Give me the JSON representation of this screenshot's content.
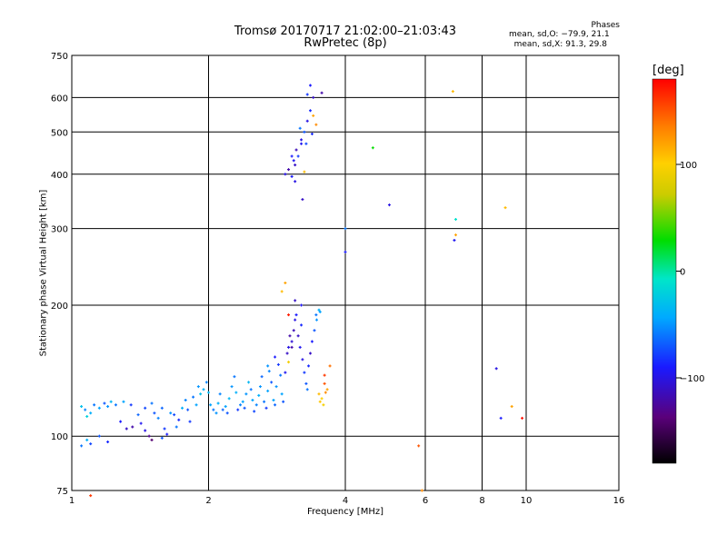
{
  "title_line1": "Tromsø 20170717 21:02:00–21:03:43",
  "title_line2": "RwPretec (8p)",
  "phase_box": {
    "title": "Phases",
    "line_o": "mean, sd,O: −79.9, 21.1",
    "line_x": "mean, sd,X:  91.3, 29.8"
  },
  "colorbar": {
    "unit": "[deg]",
    "range": [
      -180,
      180
    ],
    "ticks": [
      {
        "value": 100,
        "label": "100"
      },
      {
        "value": 0,
        "label": "0"
      },
      {
        "value": -100,
        "label": "−100"
      }
    ]
  },
  "chart_data": {
    "type": "scatter",
    "xlabel": "Frequency [MHz]",
    "ylabel": "Stationary phase Virtual Height [km]",
    "x_scale": "log",
    "y_scale": "log",
    "xlim": [
      1,
      16
    ],
    "ylim": [
      75,
      750
    ],
    "x_ticks": [
      {
        "value": 1,
        "label": "1"
      },
      {
        "value": 2,
        "label": "2"
      },
      {
        "value": 4,
        "label": "4"
      },
      {
        "value": 6,
        "label": "6"
      },
      {
        "value": 8,
        "label": "8"
      },
      {
        "value": 10,
        "label": "10"
      },
      {
        "value": 16,
        "label": "16"
      }
    ],
    "y_ticks": [
      {
        "value": 75,
        "label": "75"
      },
      {
        "value": 100,
        "label": "100"
      },
      {
        "value": 200,
        "label": "200"
      },
      {
        "value": 300,
        "label": "300"
      },
      {
        "value": 400,
        "label": "400"
      },
      {
        "value": 500,
        "label": "500"
      },
      {
        "value": 600,
        "label": "600"
      },
      {
        "value": 750,
        "label": "750"
      }
    ],
    "x_grid": [
      1,
      2,
      4,
      6,
      8,
      10,
      16
    ],
    "y_grid": [
      75,
      100,
      200,
      300,
      400,
      500,
      600,
      750
    ],
    "color_by": "phase [deg]",
    "points": [
      [
        1.05,
        95,
        -60
      ],
      [
        1.1,
        96,
        -75
      ],
      [
        1.08,
        98,
        -40
      ],
      [
        1.15,
        100,
        -70
      ],
      [
        1.2,
        97,
        -85
      ],
      [
        1.05,
        117,
        -30
      ],
      [
        1.07,
        115,
        -55
      ],
      [
        1.1,
        113,
        -40
      ],
      [
        1.12,
        118,
        -60
      ],
      [
        1.15,
        116,
        -45
      ],
      [
        1.18,
        119,
        -70
      ],
      [
        1.2,
        117,
        -50
      ],
      [
        1.22,
        120,
        -35
      ],
      [
        1.25,
        118,
        -60
      ],
      [
        1.08,
        111,
        -20
      ],
      [
        1.3,
        120,
        -45
      ],
      [
        1.35,
        118,
        -80
      ],
      [
        1.28,
        108,
        -90
      ],
      [
        1.32,
        104,
        -110
      ],
      [
        1.36,
        105,
        -120
      ],
      [
        1.4,
        112,
        -65
      ],
      [
        1.42,
        107,
        -95
      ],
      [
        1.45,
        116,
        -75
      ],
      [
        1.48,
        100,
        -130
      ],
      [
        1.5,
        98,
        -140
      ],
      [
        1.45,
        103,
        -100
      ],
      [
        1.5,
        119,
        -60
      ],
      [
        1.52,
        113,
        -70
      ],
      [
        1.55,
        110,
        -55
      ],
      [
        1.58,
        116,
        -65
      ],
      [
        1.6,
        104,
        -80
      ],
      [
        1.62,
        101,
        -90
      ],
      [
        1.58,
        99,
        -70
      ],
      [
        1.65,
        113,
        -50
      ],
      [
        1.68,
        112,
        -75
      ],
      [
        1.7,
        105,
        -60
      ],
      [
        1.72,
        109,
        -85
      ],
      [
        1.75,
        116,
        -40
      ],
      [
        1.78,
        121,
        -55
      ],
      [
        1.8,
        115,
        -70
      ],
      [
        1.82,
        108,
        -80
      ],
      [
        1.85,
        123,
        -60
      ],
      [
        1.88,
        118,
        -45
      ],
      [
        1.9,
        130,
        -50
      ],
      [
        1.92,
        125,
        -30
      ],
      [
        1.95,
        128,
        -40
      ],
      [
        1.98,
        133,
        -55
      ],
      [
        2.0,
        126,
        -35
      ],
      [
        2.02,
        118,
        -45
      ],
      [
        2.05,
        115,
        -60
      ],
      [
        2.08,
        113,
        -50
      ],
      [
        2.1,
        119,
        -40
      ],
      [
        2.12,
        125,
        -55
      ],
      [
        2.15,
        115,
        -65
      ],
      [
        2.18,
        117,
        -45
      ],
      [
        2.2,
        113,
        -70
      ],
      [
        2.22,
        122,
        -35
      ],
      [
        2.25,
        130,
        -50
      ],
      [
        2.28,
        137,
        -60
      ],
      [
        2.3,
        126,
        -40
      ],
      [
        2.32,
        115,
        -80
      ],
      [
        2.35,
        118,
        -55
      ],
      [
        2.38,
        120,
        -45
      ],
      [
        2.4,
        116,
        -70
      ],
      [
        2.42,
        125,
        -50
      ],
      [
        2.45,
        133,
        -35
      ],
      [
        2.48,
        128,
        -60
      ],
      [
        2.5,
        121,
        -45
      ],
      [
        2.52,
        114,
        -75
      ],
      [
        2.55,
        118,
        -55
      ],
      [
        2.58,
        124,
        -40
      ],
      [
        2.6,
        130,
        -50
      ],
      [
        2.62,
        137,
        -65
      ],
      [
        2.65,
        120,
        -60
      ],
      [
        2.68,
        116,
        -80
      ],
      [
        2.7,
        127,
        -45
      ],
      [
        2.72,
        141,
        -55
      ],
      [
        2.75,
        133,
        -70
      ],
      [
        2.78,
        121,
        -45
      ],
      [
        2.8,
        118,
        -65
      ],
      [
        2.82,
        130,
        -50
      ],
      [
        2.85,
        146,
        -80
      ],
      [
        2.88,
        138,
        -60
      ],
      [
        2.9,
        125,
        -45
      ],
      [
        2.92,
        120,
        -70
      ],
      [
        2.95,
        140,
        -95
      ],
      [
        2.98,
        155,
        -110
      ],
      [
        3.0,
        160,
        -100
      ],
      [
        3.02,
        170,
        -120
      ],
      [
        3.05,
        165,
        -105
      ],
      [
        3.08,
        175,
        -115
      ],
      [
        3.1,
        185,
        -100
      ],
      [
        3.12,
        190,
        -90
      ],
      [
        3.15,
        170,
        -110
      ],
      [
        3.18,
        160,
        -95
      ],
      [
        3.2,
        180,
        -85
      ],
      [
        3.22,
        150,
        -100
      ],
      [
        3.25,
        140,
        -80
      ],
      [
        3.28,
        132,
        -70
      ],
      [
        3.3,
        128,
        -60
      ],
      [
        3.32,
        145,
        -85
      ],
      [
        3.35,
        155,
        -110
      ],
      [
        3.38,
        165,
        -90
      ],
      [
        3.42,
        175,
        -70
      ],
      [
        3.46,
        185,
        -50
      ],
      [
        3.5,
        195,
        -40
      ],
      [
        3.45,
        190,
        -60
      ],
      [
        3.52,
        193,
        -45
      ],
      [
        2.9,
        215,
        110
      ],
      [
        2.95,
        225,
        120
      ],
      [
        3.0,
        190,
        170
      ],
      [
        3.1,
        205,
        -110
      ],
      [
        3.2,
        200,
        -95
      ],
      [
        3.0,
        148,
        95
      ],
      [
        3.05,
        160,
        -120
      ],
      [
        2.8,
        152,
        -90
      ],
      [
        2.7,
        145,
        -50
      ],
      [
        3.6,
        138,
        160
      ],
      [
        3.65,
        128,
        120
      ],
      [
        3.55,
        122,
        100
      ],
      [
        3.5,
        125,
        110
      ],
      [
        3.6,
        132,
        150
      ],
      [
        3.58,
        118,
        95
      ],
      [
        3.52,
        120,
        105
      ],
      [
        3.62,
        126,
        130
      ],
      [
        3.7,
        145,
        140
      ],
      [
        2.95,
        400,
        -100
      ],
      [
        3.0,
        410,
        -120
      ],
      [
        3.05,
        395,
        -90
      ],
      [
        3.1,
        420,
        -110
      ],
      [
        3.15,
        440,
        -80
      ],
      [
        3.2,
        470,
        -95
      ],
      [
        3.25,
        500,
        -70
      ],
      [
        3.3,
        530,
        -100
      ],
      [
        3.35,
        560,
        -85
      ],
      [
        3.4,
        600,
        -110
      ],
      [
        3.35,
        640,
        -90
      ],
      [
        3.3,
        610,
        -80
      ],
      [
        3.2,
        480,
        -100
      ],
      [
        3.12,
        455,
        -115
      ],
      [
        3.08,
        430,
        -95
      ],
      [
        3.18,
        510,
        -60
      ],
      [
        3.28,
        470,
        -75
      ],
      [
        3.4,
        545,
        120
      ],
      [
        3.45,
        520,
        130
      ],
      [
        3.38,
        495,
        -85
      ],
      [
        3.05,
        440,
        -90
      ],
      [
        3.25,
        405,
        110
      ],
      [
        3.1,
        385,
        -100
      ],
      [
        3.22,
        350,
        -110
      ],
      [
        3.55,
        615,
        -120
      ],
      [
        4.0,
        300,
        -60
      ],
      [
        4.0,
        265,
        -90
      ],
      [
        4.6,
        460,
        30
      ],
      [
        5.0,
        340,
        -100
      ],
      [
        5.8,
        95,
        150
      ],
      [
        5.9,
        75,
        130
      ],
      [
        6.9,
        620,
        110
      ],
      [
        7.0,
        315,
        -10
      ],
      [
        7.0,
        290,
        120
      ],
      [
        6.95,
        282,
        -95
      ],
      [
        8.6,
        143,
        -100
      ],
      [
        8.8,
        110,
        -90
      ],
      [
        9.0,
        335,
        110
      ],
      [
        9.3,
        117,
        120
      ],
      [
        9.8,
        110,
        175
      ],
      [
        1.1,
        73,
        160
      ]
    ]
  }
}
